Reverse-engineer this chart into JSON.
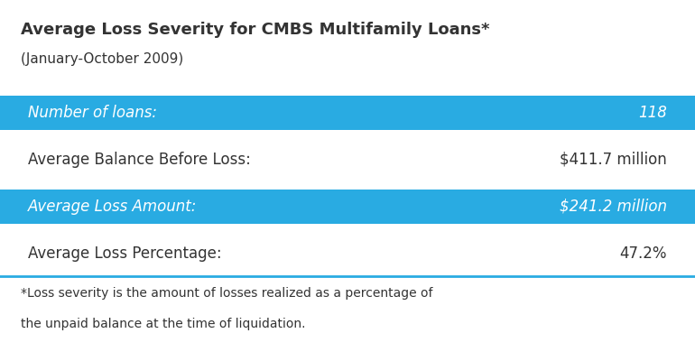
{
  "title": "Average Loss Severity for CMBS Multifamily Loans*",
  "subtitle": "(January-October 2009)",
  "rows": [
    {
      "label": "Number of loans:",
      "value": "118",
      "highlighted": true
    },
    {
      "label": "Average Balance Before Loss:",
      "value": "$411.7 million",
      "highlighted": false
    },
    {
      "label": "Average Loss Amount:",
      "value": "$241.2 million",
      "highlighted": true
    },
    {
      "label": "Average Loss Percentage:",
      "value": "47.2%",
      "highlighted": false
    }
  ],
  "highlight_color": "#29ABE2",
  "bg_color": "#FFFFFF",
  "text_color_dark": "#333333",
  "text_color_light": "#FFFFFF",
  "footnote_line1": "*Loss severity is the amount of losses realized as a percentage of",
  "footnote_line2": "the unpaid balance at the time of liquidation.",
  "divider_color": "#29ABE2",
  "title_fontsize": 13,
  "subtitle_fontsize": 11,
  "row_fontsize": 12,
  "footnote_fontsize": 10
}
